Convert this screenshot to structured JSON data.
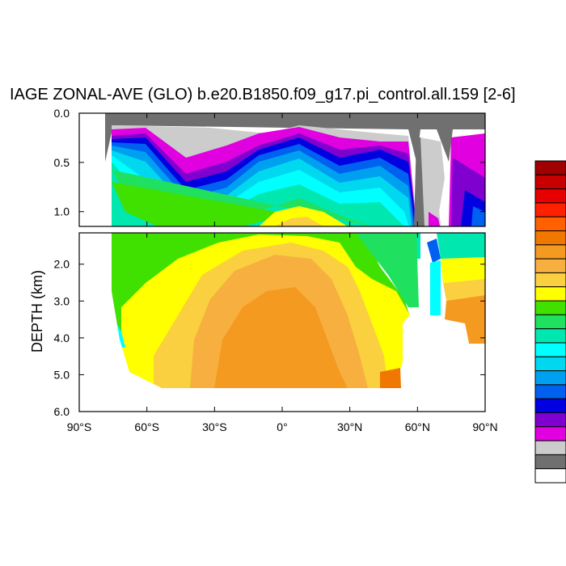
{
  "chart_data": {
    "type": "heatmap",
    "title": "IAGE ZONAL-AVE (GLO) b.e20.B1850.f09_g17.pi_control.all.159 [2-6]",
    "xlabel": "",
    "ylabel": "DEPTH (km)",
    "x_ticks": [
      "90°S",
      "60°S",
      "30°S",
      "0°",
      "30°N",
      "60°N",
      "90°N"
    ],
    "x_tick_values": [
      -90,
      -60,
      -30,
      0,
      30,
      60,
      90
    ],
    "xlim": [
      -90,
      90
    ],
    "upper_panel": {
      "ylim": [
        0.0,
        1.15
      ],
      "y_ticks": [
        "0.0",
        "0.5",
        "1.0"
      ],
      "y_tick_values": [
        0.0,
        0.5,
        1.0
      ]
    },
    "lower_panel": {
      "ylim": [
        1.15,
        6.0
      ],
      "y_ticks": [
        "2.0",
        "3.0",
        "4.0",
        "5.0",
        "6.0"
      ],
      "y_tick_values": [
        2.0,
        3.0,
        4.0,
        5.0,
        6.0
      ]
    },
    "color_levels": [
      "#a00000",
      "#c80000",
      "#e60000",
      "#ff2000",
      "#ff6000",
      "#f07800",
      "#f59a20",
      "#f7b040",
      "#fad040",
      "#ffff00",
      "#40e000",
      "#20e060",
      "#00e8b0",
      "#00ffff",
      "#00d8f0",
      "#00a0f0",
      "#0060f0",
      "#0000e0",
      "#8000d0",
      "#e000e0",
      "#cccccc",
      "#707070",
      "#ffffff"
    ],
    "field_levels_by_depth": {
      "description": "approximate contour band index (into color_levels) by latitude region",
      "upper": [
        {
          "lat": [
            -75,
            -65
          ],
          "depth": [
            0.1,
            0.4
          ],
          "band": 13
        },
        {
          "lat": [
            -60,
            -30
          ],
          "depth": [
            0.2,
            0.6
          ],
          "band": 17
        },
        {
          "lat": [
            -30,
            30
          ],
          "depth": [
            0.3,
            0.9
          ],
          "band": 14
        },
        {
          "lat": [
            -10,
            20
          ],
          "depth": [
            0.9,
            1.15
          ],
          "band": 9
        }
      ],
      "lower": [
        {
          "lat": [
            -75,
            -50
          ],
          "depth": [
            1.2,
            3.5
          ],
          "band": 10
        },
        {
          "lat": [
            -40,
            40
          ],
          "depth": [
            2.0,
            5.3
          ],
          "band": 6
        },
        {
          "lat": [
            -15,
            15
          ],
          "depth": [
            3.0,
            5.3
          ],
          "band": 5
        }
      ]
    }
  }
}
